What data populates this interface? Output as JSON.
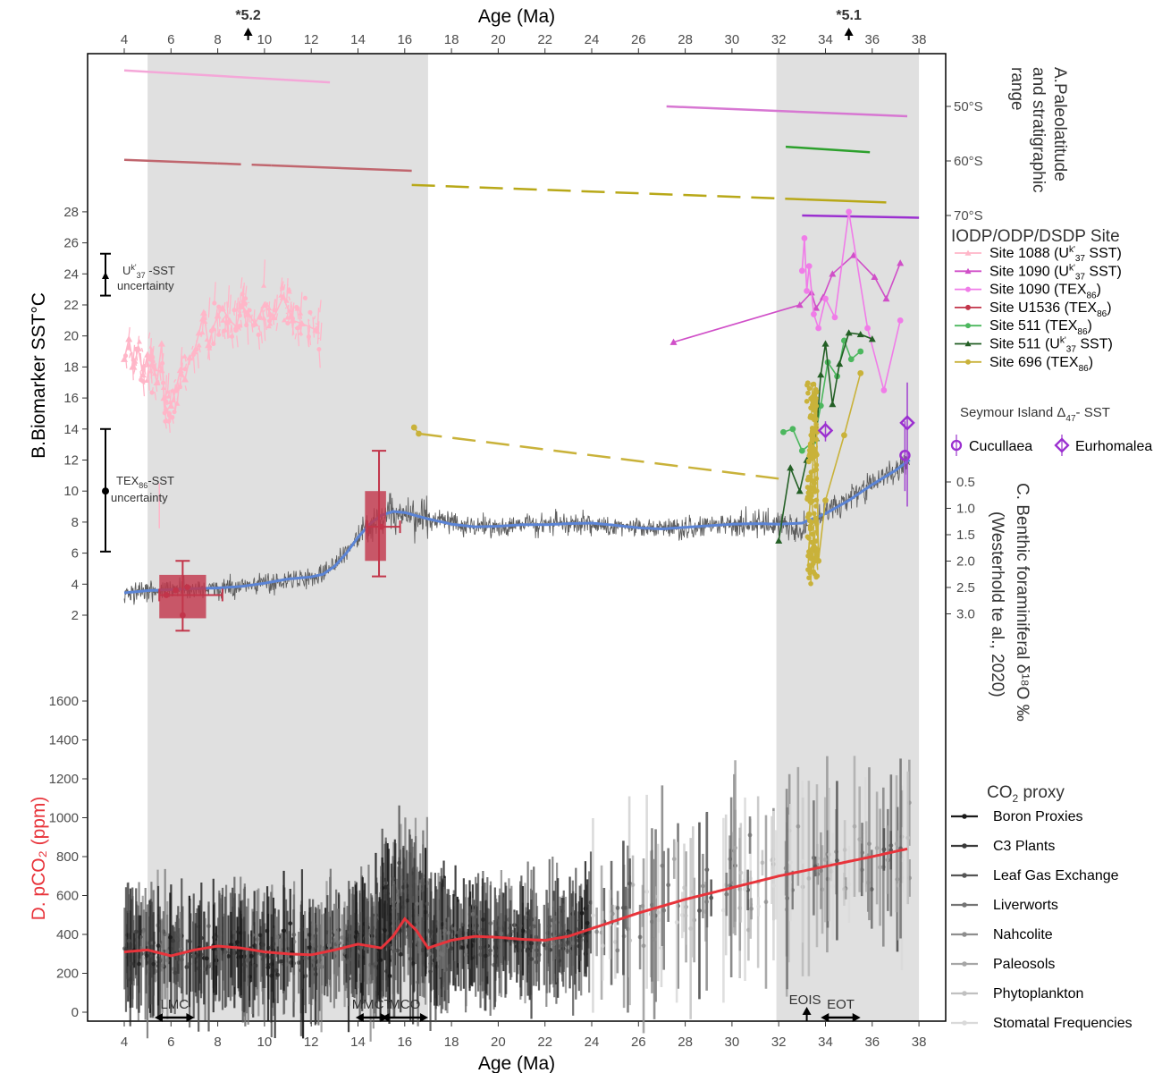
{
  "chart_data": {
    "type": "line",
    "x_top": {
      "label": "Age (Ma)",
      "ticks": [
        4,
        6,
        8,
        10,
        12,
        14,
        16,
        18,
        20,
        22,
        24,
        26,
        28,
        30,
        32,
        34,
        36,
        38
      ],
      "range": [
        2.5,
        39
      ]
    },
    "x_bottom": {
      "label": "Age (Ma)",
      "ticks": [
        4,
        6,
        8,
        10,
        12,
        14,
        16,
        18,
        20,
        22,
        24,
        26,
        28,
        30,
        32,
        34,
        36,
        38
      ]
    },
    "top_markers": [
      {
        "label": "*5.2",
        "age": 9.3
      },
      {
        "label": "*5.1",
        "age": 35.0
      }
    ],
    "shaded_intervals": [
      [
        5.0,
        17.0
      ],
      [
        31.9,
        38.0
      ]
    ],
    "panel_A": {
      "label_lines": [
        "A.Paleolatitude",
        "and stratigraphic",
        "range"
      ],
      "ticks": [
        "50°S",
        "60°S",
        "70°S"
      ],
      "ranges": [
        {
          "site": "Site 1088 (Uk'37 SST)",
          "color": "#f4a7d8",
          "start": 4.0,
          "end": 12.8,
          "lat_start": 43.4,
          "lat_end": 45.6
        },
        {
          "site": "Site 1090 (TEX86)",
          "color": "#d777d2",
          "start": 27.2,
          "end": 37.5,
          "lat_start": 50.0,
          "lat_end": 51.8
        },
        {
          "site": "Site U1536 (TEX86)",
          "color": "#c0666e",
          "start": 4.0,
          "end": 16.3,
          "lat_start": 59.8,
          "lat_end": 61.8,
          "dashed_segment": [
            8.0,
            10.3
          ]
        },
        {
          "site": "Site 511 (TEX86)",
          "color": "#2ca02c",
          "start": 32.3,
          "end": 35.9,
          "lat_start": 57.4,
          "lat_end": 58.4
        },
        {
          "site": "Site 696 (TEX86)",
          "color": "#b8a818",
          "start": 16.3,
          "end": 36.6,
          "lat_start": 64.4,
          "lat_end": 67.6,
          "dashed_segment": [
            16.3,
            33.2
          ]
        },
        {
          "site": "Site 1090 (Uk'37 SST)",
          "color": "#9b30d0",
          "start": 33.0,
          "end": 38.0,
          "lat_start": 70.0,
          "lat_end": 70.4
        }
      ]
    },
    "panel_B": {
      "ylabel": "B.Biomarker SST°C",
      "yticks": [
        2,
        4,
        6,
        8,
        10,
        12,
        14,
        16,
        18,
        20,
        22,
        24,
        26,
        28
      ],
      "uncertainty": [
        {
          "label": "Uk'37 -SST uncertainty",
          "center": 23.9,
          "low": 22.6,
          "high": 25.3
        },
        {
          "label": "TEX86-SST uncertainty",
          "center": 10.0,
          "low": 6.1,
          "high": 14.0
        }
      ],
      "series": [
        {
          "name": "Site 1088 (Uk'37 SST)",
          "color": "#ffb6c8",
          "marker": "triangle",
          "x": [
            4.0,
            4.2,
            4.4,
            4.6,
            4.8,
            5.0,
            5.2,
            5.4,
            5.6,
            5.7,
            5.8,
            6.0,
            6.2,
            6.4,
            6.6,
            6.8,
            7.0,
            7.2,
            7.4,
            7.6,
            7.8,
            8.0,
            8.2,
            8.5,
            8.8,
            9.0,
            9.3,
            9.6,
            10.0,
            10.4,
            10.8,
            11.2,
            11.6,
            12.2
          ],
          "y": [
            18.5,
            19.8,
            18.0,
            19.2,
            17.5,
            18.8,
            18.2,
            17.0,
            19.5,
            16.0,
            15.2,
            15.5,
            16.5,
            17.8,
            17.2,
            18.6,
            19.0,
            20.2,
            21.5,
            19.4,
            20.5,
            21.3,
            21.8,
            21.0,
            20.6,
            21.9,
            21.4,
            20.8,
            22.0,
            21.2,
            22.5,
            21.0,
            20.8,
            20.4
          ]
        },
        {
          "name": "Site 1090 (Uk'37 SST)",
          "color": "#d04fc8",
          "marker": "triangle",
          "x": [
            27.5,
            32.9,
            33.4,
            33.6,
            33.9,
            34.3,
            35.2,
            36.1,
            36.6,
            37.2
          ],
          "y": [
            19.6,
            22.0,
            22.8,
            21.8,
            22.5,
            24.0,
            25.2,
            23.8,
            22.4,
            24.7
          ]
        },
        {
          "name": "Site 1090 (TEX86)",
          "color": "#f07ce8",
          "marker": "circle",
          "x": [
            33.0,
            33.1,
            33.2,
            33.3,
            33.5,
            33.7,
            34.0,
            34.4,
            35.0,
            35.8,
            36.5,
            37.2
          ],
          "y": [
            24.2,
            26.3,
            22.9,
            24.5,
            21.4,
            20.5,
            22.4,
            21.2,
            28.0,
            20.5,
            16.5,
            21.0
          ]
        },
        {
          "name": "Site U1536 (TEX86)",
          "color": "#c2354a",
          "marker": "circle",
          "x": [
            5.8,
            6.2,
            6.5,
            6.7,
            15.0
          ],
          "y": [
            3.3,
            3.6,
            2.0,
            3.8,
            7.7
          ]
        },
        {
          "name": "Site 511 (TEX86)",
          "color": "#4cb75e",
          "marker": "circle",
          "x": [
            32.2,
            32.6,
            33.0,
            33.5,
            33.8,
            34.1,
            34.5,
            34.8,
            35.1,
            35.5
          ],
          "y": [
            13.8,
            14.0,
            12.6,
            13.2,
            15.5,
            18.3,
            17.4,
            19.7,
            18.5,
            19.0
          ]
        },
        {
          "name": "Site 511 (Uk'37 SST)",
          "color": "#235f25",
          "marker": "triangle",
          "x": [
            32.0,
            32.5,
            32.9,
            33.2,
            33.6,
            33.8,
            34.0,
            34.3,
            34.6,
            35.0,
            35.5,
            36.0
          ],
          "y": [
            6.8,
            11.5,
            10.0,
            12.0,
            13.4,
            17.5,
            19.5,
            15.6,
            18.2,
            20.2,
            20.1,
            19.8
          ]
        },
        {
          "name": "Site 696 (TEX86)",
          "color": "#c9b23a",
          "marker": "circle",
          "x": [
            16.4,
            16.6,
            33.3,
            33.4,
            33.5,
            33.6,
            33.7,
            34.0,
            34.8,
            35.5
          ],
          "y": [
            14.1,
            13.7,
            8.5,
            10.2,
            12.7,
            16.4,
            5.5,
            9.4,
            13.6,
            17.6
          ]
        }
      ],
      "boxes": [
        {
          "site": "Site U1536 (TEX86)",
          "age_center": 6.5,
          "age_low": 5.5,
          "age_high": 8.2,
          "age_box": [
            5.5,
            7.5
          ],
          "sst_median": 3.3,
          "sst_box": [
            1.8,
            4.6
          ],
          "sst_whisker": [
            1.0,
            5.5
          ]
        },
        {
          "site": "Site U1536 (TEX86)",
          "age_center": 14.9,
          "age_low": 14.4,
          "age_high": 15.8,
          "age_box": [
            14.3,
            15.2
          ],
          "sst_median": 7.7,
          "sst_box": [
            5.5,
            10.0
          ],
          "sst_whisker": [
            4.5,
            12.6
          ]
        }
      ],
      "seymour": {
        "title": "Seymour Island Δ47- SST",
        "points": [
          {
            "name": "Cucullaea",
            "age": 37.4,
            "value": 12.3,
            "low": 10.0,
            "high": 14.5
          },
          {
            "name": "Eurhomalea",
            "age": 37.5,
            "value": 14.4,
            "low": 9.0,
            "high": 17.0
          },
          {
            "name": "Eurhomalea",
            "age": 34.0,
            "value": 13.9,
            "low": 13.2,
            "high": 14.5
          }
        ]
      }
    },
    "panel_C": {
      "ylabel": "C. Benthic foraminiferal δ¹⁸O ‰ (Westerhold te al., 2020)",
      "yticks": [
        0.5,
        1.0,
        1.5,
        2.0,
        2.5,
        3.0
      ],
      "smooth": {
        "color": "#5b84d6",
        "x": [
          4,
          5,
          6,
          7,
          8,
          9,
          10,
          11,
          12,
          12.5,
          13,
          13.5,
          14,
          14.5,
          15,
          15.5,
          16,
          16.5,
          17,
          18,
          19,
          20,
          21,
          22,
          23,
          24,
          25,
          26,
          27,
          28,
          29,
          30,
          31,
          32,
          33,
          34,
          35,
          36,
          37,
          37.6
        ],
        "y": [
          2.6,
          2.56,
          2.54,
          2.52,
          2.51,
          2.48,
          2.42,
          2.34,
          2.3,
          2.25,
          2.1,
          1.85,
          1.55,
          1.3,
          1.13,
          1.06,
          1.08,
          1.14,
          1.2,
          1.3,
          1.35,
          1.34,
          1.31,
          1.31,
          1.29,
          1.28,
          1.32,
          1.37,
          1.39,
          1.36,
          1.33,
          1.3,
          1.29,
          1.3,
          1.28,
          1.1,
          0.85,
          0.55,
          0.28,
          0.08
        ]
      }
    },
    "panel_D": {
      "ylabel": "D. pCO2 (ppm)",
      "yticks": [
        0,
        200,
        400,
        600,
        800,
        1000,
        1200,
        1400,
        1600
      ],
      "smooth": {
        "color": "#e8343b",
        "x": [
          4,
          5,
          6,
          7,
          8,
          9,
          10,
          11,
          12,
          13,
          14,
          15,
          15.5,
          16,
          16.5,
          17,
          18,
          19,
          20,
          21,
          22,
          23,
          24,
          26,
          28,
          30,
          32,
          34,
          36,
          37.5
        ],
        "y": [
          310,
          320,
          290,
          320,
          340,
          330,
          310,
          300,
          295,
          320,
          350,
          330,
          390,
          480,
          420,
          330,
          370,
          390,
          385,
          375,
          370,
          390,
          430,
          510,
          580,
          640,
          700,
          750,
          800,
          840
        ]
      }
    },
    "legend": {
      "sites_title": "IODP/ODP/DSDP Site",
      "sites": [
        {
          "main": "Site 1088 (U",
          "sup": "k'",
          "sub": "37",
          "tail": " SST)",
          "color": "#ffb6c8",
          "marker": "triangle"
        },
        {
          "main": "Site 1090 (U",
          "sup": "k'",
          "sub": "37",
          "tail": " SST)",
          "color": "#d04fc8",
          "marker": "triangle"
        },
        {
          "main": "Site 1090 (TEX",
          "sup": "",
          "sub": "86",
          "tail": ")",
          "color": "#f07ce8",
          "marker": "circle"
        },
        {
          "main": "Site U1536 (TEX",
          "sup": "",
          "sub": "86",
          "tail": ")",
          "color": "#c2354a",
          "marker": "circle"
        },
        {
          "main": "Site 511 (TEX",
          "sup": "",
          "sub": "86",
          "tail": ")",
          "color": "#4cb75e",
          "marker": "circle"
        },
        {
          "main": "Site 511 (U",
          "sup": "k'",
          "sub": "37",
          "tail": " SST)",
          "color": "#235f25",
          "marker": "triangle"
        },
        {
          "main": "Site 696 (TEX",
          "sup": "",
          "sub": "86",
          "tail": ")",
          "color": "#c9b23a",
          "marker": "circle"
        }
      ],
      "seymour_title": "Seymour Island Δ47- SST",
      "seymour_items": [
        "Cucullaea",
        "Eurhomalea"
      ],
      "co2_title": "CO2 proxy",
      "co2_items": [
        {
          "name": "Boron Proxies",
          "color": "#1a1a1a"
        },
        {
          "name": "C3 Plants",
          "color": "#3a3a3a"
        },
        {
          "name": "Leaf Gas Exchange",
          "color": "#555555"
        },
        {
          "name": "Liverworts",
          "color": "#747474"
        },
        {
          "name": "Nahcolite",
          "color": "#8e8e8e"
        },
        {
          "name": "Paleosols",
          "color": "#a6a6a6"
        },
        {
          "name": "Phytoplankton",
          "color": "#c0c0c0"
        },
        {
          "name": "Stomatal Frequencies",
          "color": "#d9d9d9"
        }
      ]
    },
    "events": [
      {
        "label": "LMC",
        "start": 5.3,
        "end": 7.0
      },
      {
        "label": "MMCT",
        "start": 13.9,
        "end": 15.3
      },
      {
        "label": "MCO",
        "start": 15.0,
        "end": 17.0
      },
      {
        "label": "EOIS",
        "start": 33.2,
        "end": 33.2,
        "up_arrow": true
      },
      {
        "label": "EOT",
        "start": 33.8,
        "end": 35.5
      }
    ]
  }
}
